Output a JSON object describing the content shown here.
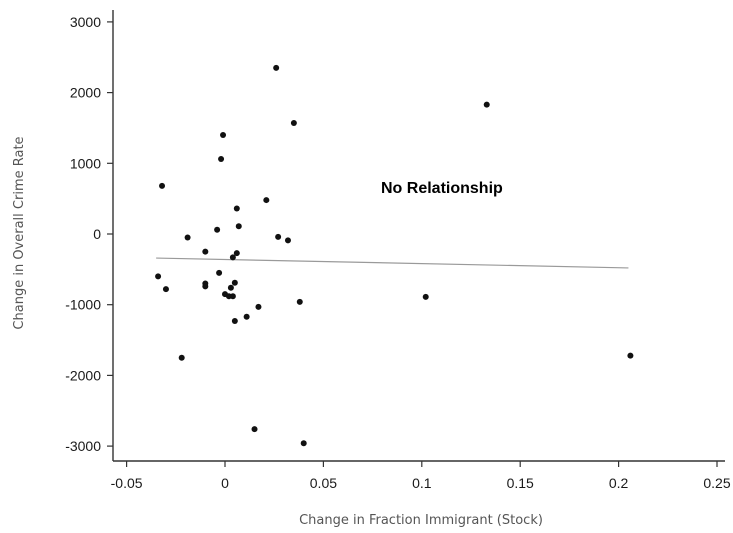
{
  "chart_data": {
    "type": "scatter",
    "title": "",
    "xlabel": "Change in Fraction Immigrant (Stock)",
    "ylabel": "Change in Overall Crime Rate",
    "annotation": "No Relationship",
    "xlim": [
      -0.055,
      0.255
    ],
    "ylim": [
      -3200,
      3200
    ],
    "x_ticks": [
      -0.05,
      0,
      0.05,
      0.1,
      0.15,
      0.2,
      0.25
    ],
    "x_tick_labels": [
      "-0.05",
      "0",
      "0.05",
      "0.1",
      "0.15",
      "0.2",
      "0.25"
    ],
    "y_ticks": [
      3000,
      2000,
      1000,
      0,
      -1000,
      -2000,
      -3000
    ],
    "y_tick_labels": [
      "3000",
      "2000",
      "1000",
      "0",
      "-1000",
      "-2000",
      "-3000"
    ],
    "grid": false,
    "points": [
      {
        "x": -0.034,
        "y": -600
      },
      {
        "x": -0.032,
        "y": 680
      },
      {
        "x": -0.03,
        "y": -780
      },
      {
        "x": -0.022,
        "y": -1750
      },
      {
        "x": -0.019,
        "y": -50
      },
      {
        "x": -0.01,
        "y": -250
      },
      {
        "x": -0.01,
        "y": -700
      },
      {
        "x": -0.01,
        "y": -740
      },
      {
        "x": -0.004,
        "y": 60
      },
      {
        "x": -0.003,
        "y": -550
      },
      {
        "x": -0.002,
        "y": 1060
      },
      {
        "x": -0.001,
        "y": 1400
      },
      {
        "x": 0.0,
        "y": -850
      },
      {
        "x": 0.002,
        "y": -880
      },
      {
        "x": 0.003,
        "y": -760
      },
      {
        "x": 0.004,
        "y": -330
      },
      {
        "x": 0.004,
        "y": -880
      },
      {
        "x": 0.005,
        "y": -1230
      },
      {
        "x": 0.005,
        "y": -690
      },
      {
        "x": 0.006,
        "y": -270
      },
      {
        "x": 0.006,
        "y": 360
      },
      {
        "x": 0.007,
        "y": 110
      },
      {
        "x": 0.011,
        "y": -1170
      },
      {
        "x": 0.015,
        "y": -2760
      },
      {
        "x": 0.017,
        "y": -1030
      },
      {
        "x": 0.021,
        "y": 480
      },
      {
        "x": 0.026,
        "y": 2350
      },
      {
        "x": 0.027,
        "y": -40
      },
      {
        "x": 0.032,
        "y": -90
      },
      {
        "x": 0.035,
        "y": 1570
      },
      {
        "x": 0.038,
        "y": -960
      },
      {
        "x": 0.04,
        "y": -2960
      },
      {
        "x": 0.102,
        "y": -890
      },
      {
        "x": 0.133,
        "y": 1830
      },
      {
        "x": 0.206,
        "y": -1720
      }
    ],
    "trend_line": {
      "x": [
        -0.035,
        0.205
      ],
      "y": [
        -340,
        -480
      ]
    }
  }
}
